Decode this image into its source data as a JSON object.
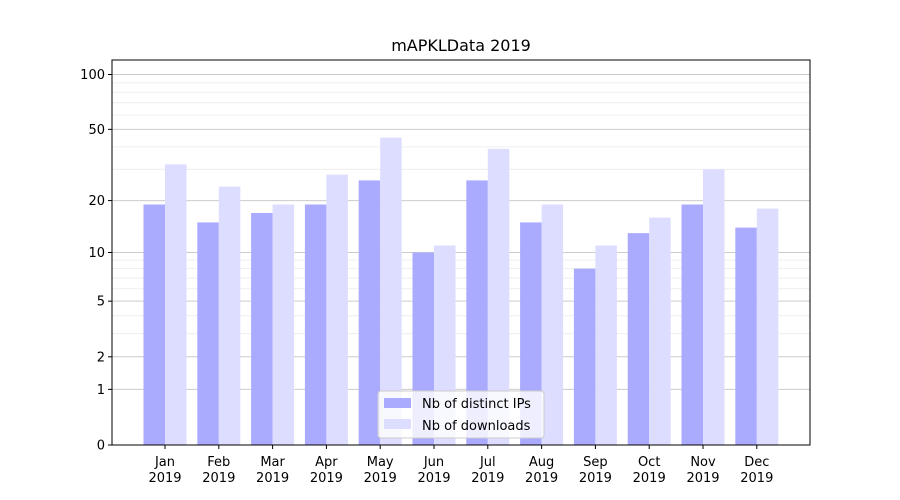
{
  "chart_data": {
    "type": "bar",
    "title": "mAPKLData 2019",
    "xlabel": "",
    "ylabel": "",
    "yscale": "symlog",
    "ylim": [
      0,
      120
    ],
    "yticks": [
      0,
      1,
      2,
      5,
      10,
      20,
      50,
      100
    ],
    "grid": true,
    "legend_position": "bottom-center",
    "categories": [
      [
        "Jan",
        "2019"
      ],
      [
        "Feb",
        "2019"
      ],
      [
        "Mar",
        "2019"
      ],
      [
        "Apr",
        "2019"
      ],
      [
        "May",
        "2019"
      ],
      [
        "Jun",
        "2019"
      ],
      [
        "Jul",
        "2019"
      ],
      [
        "Aug",
        "2019"
      ],
      [
        "Sep",
        "2019"
      ],
      [
        "Oct",
        "2019"
      ],
      [
        "Nov",
        "2019"
      ],
      [
        "Dec",
        "2019"
      ]
    ],
    "series": [
      {
        "name": "Nb of distinct IPs",
        "color": "#aaaaff",
        "values": [
          19,
          15,
          17,
          19,
          26,
          10,
          26,
          15,
          8,
          13,
          19,
          14
        ]
      },
      {
        "name": "Nb of downloads",
        "color": "#ddddff",
        "values": [
          32,
          24,
          19,
          28,
          45,
          11,
          39,
          19,
          11,
          16,
          30,
          18
        ]
      }
    ]
  }
}
